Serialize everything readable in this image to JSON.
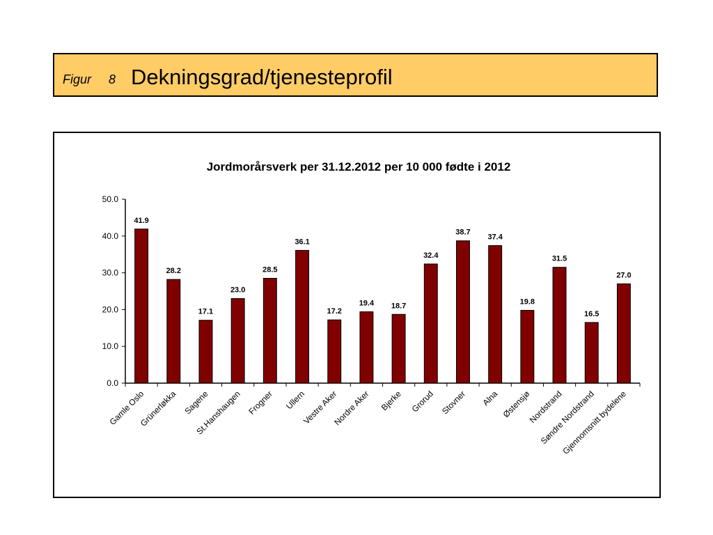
{
  "header": {
    "figure_label": "Figur",
    "figure_number": "8",
    "title": "Dekningsgrad/tjenesteprofil"
  },
  "colors": {
    "title_background": "#ffcc66",
    "bar_fill": "#800000",
    "bar_stroke": "#000000"
  },
  "chart_data": {
    "type": "bar",
    "title": "Jordmorårsverk per 31.12.2012 per 10 000 fødte i 2012",
    "xlabel": "",
    "ylabel": "",
    "ylim": [
      0,
      50
    ],
    "yticks": [
      "0.0",
      "10.0",
      "20.0",
      "30.0",
      "40.0",
      "50.0"
    ],
    "grid": false,
    "legend": "none",
    "categories": [
      "Gamle Oslo",
      "Grünerløkka",
      "Sagene",
      "St.Hanshaugen",
      "Frogner",
      "Ullern",
      "Vestre Aker",
      "Nordre Aker",
      "Bjerke",
      "Grorud",
      "Stovner",
      "Alna",
      "Østensjø",
      "Nordstrand",
      "Søndre Nordstrand",
      "Gjennomsnitt bydelene"
    ],
    "values": [
      41.9,
      28.2,
      17.1,
      23.0,
      28.5,
      36.1,
      17.2,
      19.4,
      18.7,
      32.4,
      38.7,
      37.4,
      19.8,
      31.5,
      16.5,
      27.0
    ],
    "data_labels": [
      "41.9",
      "28.2",
      "17.1",
      "23.0",
      "28.5",
      "36.1",
      "17.2",
      "19.4",
      "18.7",
      "32.4",
      "38.7",
      "37.4",
      "19.8",
      "31.5",
      "16.5",
      "27.0"
    ]
  }
}
